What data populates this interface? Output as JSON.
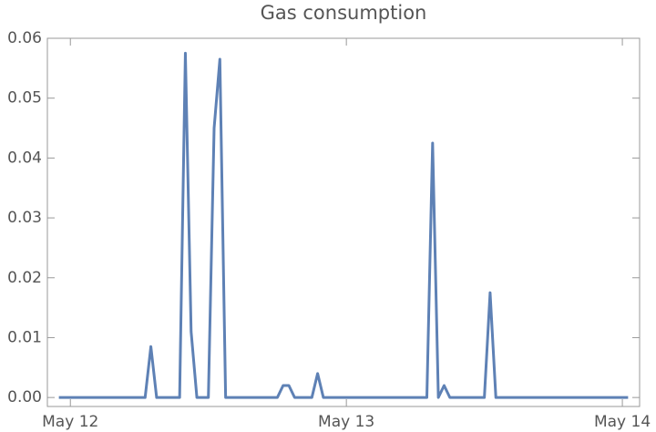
{
  "chart_data": {
    "type": "line",
    "title": "Gas consumption",
    "x": [
      -1,
      6.5,
      7,
      7.5,
      9.5,
      10,
      10.5,
      11,
      12,
      12.5,
      13,
      13.5,
      18,
      18.5,
      19,
      19.5,
      21,
      21.5,
      22,
      31,
      31.5,
      32,
      32.5,
      33,
      36,
      36.5,
      37,
      48.5
    ],
    "series": [
      {
        "color": "#5e81b5",
        "values": [
          0,
          0,
          0.0085,
          0,
          0,
          0.0575,
          0.011,
          0,
          0,
          0.045,
          0.0565,
          0,
          0,
          0.002,
          0.002,
          0,
          0,
          0.004,
          0,
          0,
          0.0425,
          0,
          0.002,
          0,
          0,
          0.0175,
          0,
          0
        ]
      }
    ],
    "xlim": [
      -2,
      49.5
    ],
    "xticks": [
      {
        "value": 0,
        "label": "May 12"
      },
      {
        "value": 24,
        "label": "May 13"
      },
      {
        "value": 48,
        "label": "May 14"
      }
    ],
    "ylim": [
      -0.0015,
      0.06
    ],
    "yticks": [
      {
        "value": 0,
        "label": "0.00"
      },
      {
        "value": 0.01,
        "label": "0.01"
      },
      {
        "value": 0.02,
        "label": "0.02"
      },
      {
        "value": 0.03,
        "label": "0.03"
      },
      {
        "value": 0.04,
        "label": "0.04"
      },
      {
        "value": 0.05,
        "label": "0.05"
      },
      {
        "value": 0.06,
        "label": "0.06"
      }
    ],
    "grid": false
  }
}
